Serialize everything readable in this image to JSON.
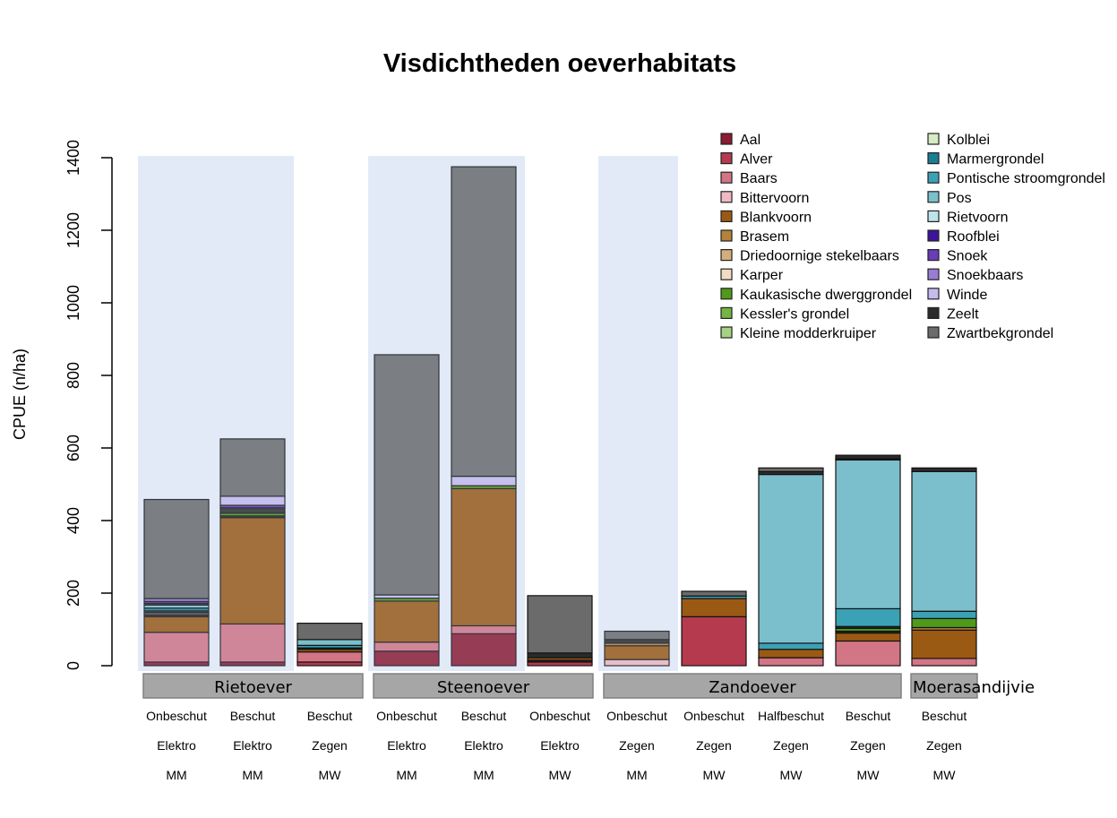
{
  "chart_data": {
    "type": "bar",
    "stacked": true,
    "title": "Visdichtheden oeverhabitats",
    "xlabel": "",
    "ylabel": "CPUE (n/ha)",
    "ylim": [
      0,
      1400
    ],
    "yticks": [
      0,
      200,
      400,
      600,
      800,
      1000,
      1200,
      1400
    ],
    "grid": false,
    "legend_position": "top-right",
    "species": [
      {
        "name": "Aal",
        "color": "#8b1a33"
      },
      {
        "name": "Alver",
        "color": "#b53a4e"
      },
      {
        "name": "Baars",
        "color": "#d27585"
      },
      {
        "name": "Bittervoorn",
        "color": "#f0b9c4"
      },
      {
        "name": "Blankvoorn",
        "color": "#9a5a14"
      },
      {
        "name": "Brasem",
        "color": "#b5823c"
      },
      {
        "name": "Driedoornige stekelbaars",
        "color": "#d4ad7c"
      },
      {
        "name": "Karper",
        "color": "#f1dcc2"
      },
      {
        "name": "Kaukasische dwerggrondel",
        "color": "#4f9a1a"
      },
      {
        "name": "Kessler's grondel",
        "color": "#74b543"
      },
      {
        "name": "Kleine modderkruiper",
        "color": "#a6d283"
      },
      {
        "name": "Kolblei",
        "color": "#d5ecc4"
      },
      {
        "name": "Marmergrondel",
        "color": "#1a7f93"
      },
      {
        "name": "Pontische stroomgrondel",
        "color": "#3ba2b6"
      },
      {
        "name": "Pos",
        "color": "#7bbfcc"
      },
      {
        "name": "Rietvoorn",
        "color": "#bde3eb"
      },
      {
        "name": "Roofblei",
        "color": "#3e139c"
      },
      {
        "name": "Snoek",
        "color": "#6a3cb8"
      },
      {
        "name": "Snoekbaars",
        "color": "#9a7cd4"
      },
      {
        "name": "Winde",
        "color": "#c6bbed"
      },
      {
        "name": "Zeelt",
        "color": "#2b2b2b"
      },
      {
        "name": "Zwartbekgrondel",
        "color": "#6b6b6b"
      }
    ],
    "groups": [
      {
        "label": "Rietoever",
        "bars": [
          0,
          1,
          2
        ],
        "shaded": [
          0,
          1
        ]
      },
      {
        "label": "Steenoever",
        "bars": [
          3,
          4,
          5
        ],
        "shaded": [
          3,
          4
        ]
      },
      {
        "label": "Zandoever",
        "bars": [
          6,
          7,
          8,
          9
        ],
        "shaded": [
          6
        ]
      },
      {
        "label": "Moerasandijvie",
        "bars": [
          10
        ],
        "shaded": []
      }
    ],
    "categories": [
      {
        "shelter": "Onbeschut",
        "method": "Elektro",
        "period": "MM"
      },
      {
        "shelter": "Beschut",
        "method": "Elektro",
        "period": "MM"
      },
      {
        "shelter": "Beschut",
        "method": "Zegen",
        "period": "MW"
      },
      {
        "shelter": "Onbeschut",
        "method": "Elektro",
        "period": "MM"
      },
      {
        "shelter": "Beschut",
        "method": "Elektro",
        "period": "MM"
      },
      {
        "shelter": "Onbeschut",
        "method": "Elektro",
        "period": "MW"
      },
      {
        "shelter": "Onbeschut",
        "method": "Zegen",
        "period": "MM"
      },
      {
        "shelter": "Onbeschut",
        "method": "Zegen",
        "period": "MW"
      },
      {
        "shelter": "Halfbeschut",
        "method": "Zegen",
        "period": "MW"
      },
      {
        "shelter": "Beschut",
        "method": "Zegen",
        "period": "MW"
      },
      {
        "shelter": "Beschut",
        "method": "Zegen",
        "period": "MW"
      }
    ],
    "stacks": [
      [
        {
          "species": "Aal",
          "value": 10
        },
        {
          "species": "Baars",
          "value": 82
        },
        {
          "species": "Blankvoorn",
          "value": 43
        },
        {
          "species": "Zeelt",
          "value": 5
        },
        {
          "species": "Zwartbekgrondel",
          "value": 6
        },
        {
          "species": "Zeelt",
          "value": 5
        },
        {
          "species": "Marmergrondel",
          "value": 8
        },
        {
          "species": "Pos",
          "value": 8
        },
        {
          "species": "Zeelt",
          "value": 5
        },
        {
          "species": "Snoek",
          "value": 5
        },
        {
          "species": "Snoekbaars",
          "value": 8
        },
        {
          "species": "Zwartbekgrondel",
          "value": 273
        }
      ],
      [
        {
          "species": "Aal",
          "value": 10
        },
        {
          "species": "Baars",
          "value": 105
        },
        {
          "species": "Blankvoorn",
          "value": 293
        },
        {
          "species": "Zeelt",
          "value": 5
        },
        {
          "species": "Kaukasische dwerggrondel",
          "value": 7
        },
        {
          "species": "Zeelt",
          "value": 15
        },
        {
          "species": "Snoek",
          "value": 7
        },
        {
          "species": "Winde",
          "value": 25
        },
        {
          "species": "Zwartbekgrondel",
          "value": 158
        }
      ],
      [
        {
          "species": "Alver",
          "value": 10
        },
        {
          "species": "Baars",
          "value": 28
        },
        {
          "species": "Blankvoorn",
          "value": 7
        },
        {
          "species": "Zeelt",
          "value": 4
        },
        {
          "species": "Pontische stroomgrondel",
          "value": 7
        },
        {
          "species": "Pos",
          "value": 16
        },
        {
          "species": "Zwartbekgrondel",
          "value": 45
        }
      ],
      [
        {
          "species": "Aal",
          "value": 40
        },
        {
          "species": "Baars",
          "value": 25
        },
        {
          "species": "Blankvoorn",
          "value": 113
        },
        {
          "species": "Kaukasische dwerggrondel",
          "value": 8
        },
        {
          "species": "Winde",
          "value": 9
        },
        {
          "species": "Zwartbekgrondel",
          "value": 662
        }
      ],
      [
        {
          "species": "Aal",
          "value": 88
        },
        {
          "species": "Baars",
          "value": 22
        },
        {
          "species": "Blankvoorn",
          "value": 378
        },
        {
          "species": "Kaukasische dwerggrondel",
          "value": 8
        },
        {
          "species": "Winde",
          "value": 26
        },
        {
          "species": "Zwartbekgrondel",
          "value": 853
        }
      ],
      [
        {
          "species": "Alver",
          "value": 10
        },
        {
          "species": "Zeelt",
          "value": 5
        },
        {
          "species": "Blankvoorn",
          "value": 7
        },
        {
          "species": "Zeelt",
          "value": 13
        },
        {
          "species": "Zwartbekgrondel",
          "value": 158
        }
      ],
      [
        {
          "species": "Bittervoorn",
          "value": 17
        },
        {
          "species": "Blankvoorn",
          "value": 38
        },
        {
          "species": "Brasem",
          "value": 7
        },
        {
          "species": "Zeelt",
          "value": 10
        },
        {
          "species": "Zwartbekgrondel",
          "value": 23
        }
      ],
      [
        {
          "species": "Alver",
          "value": 135
        },
        {
          "species": "Blankvoorn",
          "value": 50
        },
        {
          "species": "Pontische stroomgrondel",
          "value": 7
        },
        {
          "species": "Zwartbekgrondel",
          "value": 13
        }
      ],
      [
        {
          "species": "Baars",
          "value": 22
        },
        {
          "species": "Blankvoorn",
          "value": 23
        },
        {
          "species": "Pontische stroomgrondel",
          "value": 17
        },
        {
          "species": "Pos",
          "value": 465
        },
        {
          "species": "Zeelt",
          "value": 8
        },
        {
          "species": "Zwartbekgrondel",
          "value": 10
        }
      ],
      [
        {
          "species": "Baars",
          "value": 68
        },
        {
          "species": "Blankvoorn",
          "value": 22
        },
        {
          "species": "Zeelt",
          "value": 5
        },
        {
          "species": "Kaukasische dwerggrondel",
          "value": 8
        },
        {
          "species": "Zeelt",
          "value": 5
        },
        {
          "species": "Pontische stroomgrondel",
          "value": 49
        },
        {
          "species": "Pos",
          "value": 410
        },
        {
          "species": "Marmergrondel",
          "value": 3
        },
        {
          "species": "Zeelt",
          "value": 10
        }
      ],
      [
        {
          "species": "Baars",
          "value": 20
        },
        {
          "species": "Blankvoorn",
          "value": 78
        },
        {
          "species": "Brasem",
          "value": 7
        },
        {
          "species": "Kaukasische dwerggrondel",
          "value": 25
        },
        {
          "species": "Pontische stroomgrondel",
          "value": 20
        },
        {
          "species": "Pos",
          "value": 385
        },
        {
          "species": "Zeelt",
          "value": 10
        }
      ]
    ],
    "totals": [
      458,
      625,
      117,
      857,
      1375,
      193,
      95,
      205,
      545,
      580,
      545
    ]
  }
}
